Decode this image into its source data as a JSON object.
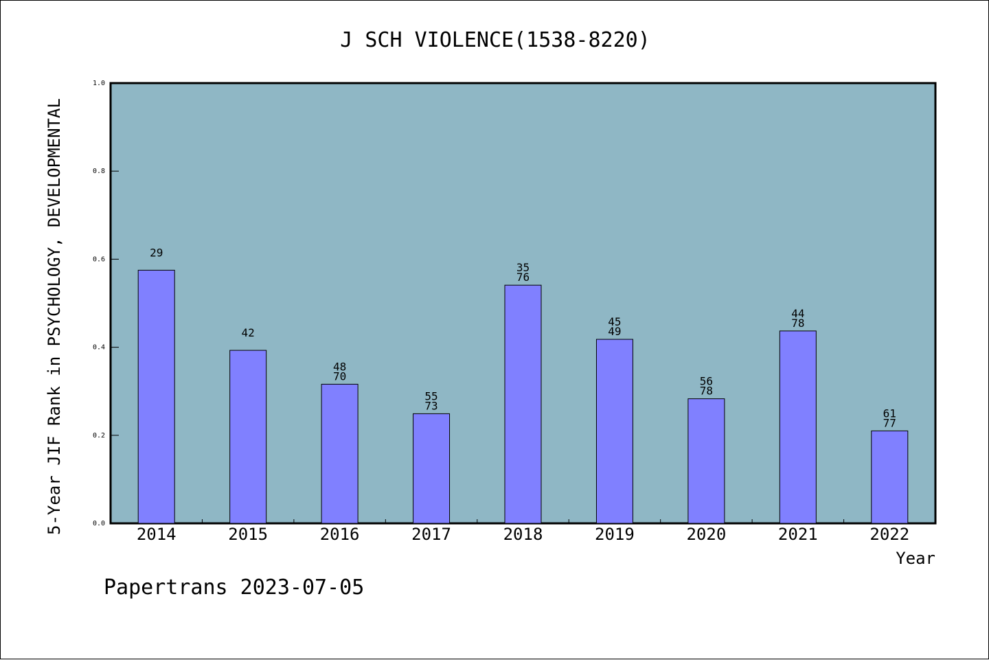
{
  "chart_data": {
    "type": "bar",
    "title": "J SCH VIOLENCE(1538-8220)",
    "xlabel": "Year",
    "ylabel": "5-Year JIF Rank in PSYCHOLOGY, DEVELOPMENTAL",
    "ylim": [
      0,
      1.0
    ],
    "yticks": [
      "0.0",
      "0.2",
      "0.4",
      "0.6",
      "0.8",
      "1.0"
    ],
    "categories": [
      "2014",
      "2015",
      "2016",
      "2017",
      "2018",
      "2019",
      "2020",
      "2021",
      "2022"
    ],
    "values": [
      0.575,
      0.393,
      0.316,
      0.249,
      0.541,
      0.418,
      0.283,
      0.437,
      0.21
    ],
    "labels": [
      [
        "29"
      ],
      [
        "42"
      ],
      [
        "48",
        "70"
      ],
      [
        "55",
        "73"
      ],
      [
        "35",
        "76"
      ],
      [
        "45",
        "49"
      ],
      [
        "56",
        "78"
      ],
      [
        "44",
        "78"
      ],
      [
        "61",
        "77"
      ]
    ],
    "colors": {
      "plot_bg": "#8fb7c5",
      "bar": "#8080ff"
    },
    "footer": "Papertrans 2023-07-05"
  }
}
